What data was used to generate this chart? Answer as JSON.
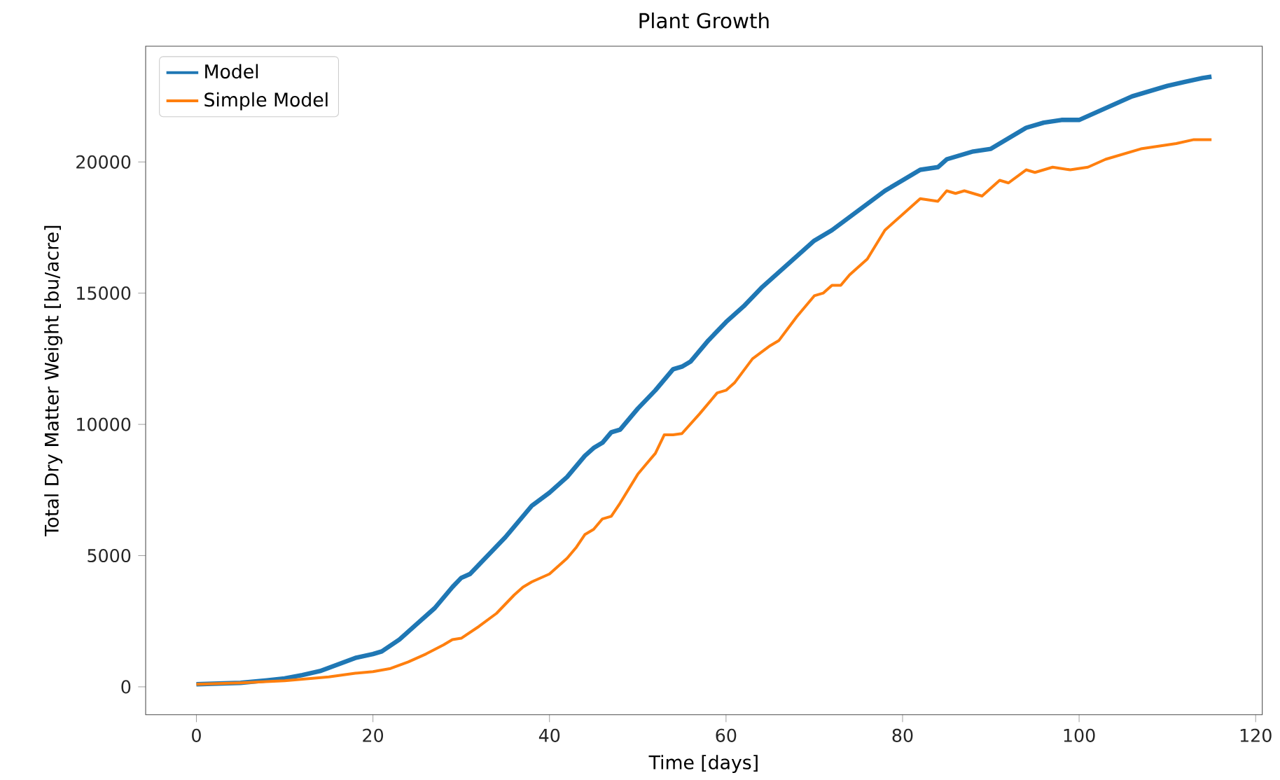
{
  "chart_data": {
    "type": "line",
    "title": "Plant Growth",
    "xlabel": "Time [days]",
    "ylabel": "Total Dry Matter Weight [bu/acre]",
    "xlim": [
      -5.75,
      120.75
    ],
    "ylim": [
      -1060,
      24410
    ],
    "xticks": [
      0,
      20,
      40,
      60,
      80,
      100,
      120
    ],
    "yticks": [
      0,
      5000,
      10000,
      15000,
      20000
    ],
    "grid": false,
    "legend": "top left",
    "line_style": "solid",
    "marker": "none",
    "series": [
      {
        "name": "Model",
        "color": "#1f77b4",
        "x": [
          0,
          5,
          8,
          10,
          12,
          14,
          16,
          18,
          20,
          21,
          23,
          25,
          27,
          29,
          30,
          31,
          33,
          35,
          37,
          38,
          40,
          42,
          44,
          45,
          46,
          47,
          48,
          50,
          52,
          53,
          54,
          55,
          56,
          58,
          60,
          62,
          64,
          66,
          68,
          70,
          72,
          74,
          76,
          78,
          80,
          82,
          84,
          85,
          86,
          88,
          90,
          92,
          94,
          96,
          98,
          100,
          102,
          104,
          106,
          108,
          110,
          112,
          114,
          115
        ],
        "values": [
          100,
          150,
          250,
          320,
          450,
          600,
          850,
          1100,
          1250,
          1350,
          1800,
          2400,
          3000,
          3800,
          4150,
          4300,
          5000,
          5700,
          6500,
          6900,
          7400,
          8000,
          8800,
          9100,
          9300,
          9700,
          9800,
          10600,
          11300,
          11700,
          12100,
          12200,
          12400,
          13200,
          13900,
          14500,
          15200,
          15800,
          16400,
          17000,
          17400,
          17900,
          18400,
          18900,
          19300,
          19700,
          19800,
          20100,
          20200,
          20400,
          20500,
          20900,
          21300,
          21500,
          21600,
          21600,
          21900,
          22200,
          22500,
          22700,
          22900,
          23050,
          23200,
          23250
        ]
      },
      {
        "name": "Simple Model",
        "color": "#ff7f0e",
        "x": [
          0,
          5,
          10,
          15,
          18,
          20,
          22,
          24,
          26,
          28,
          29,
          30,
          32,
          34,
          36,
          37,
          38,
          40,
          42,
          43,
          44,
          45,
          46,
          47,
          48,
          50,
          51,
          52,
          53,
          54,
          55,
          57,
          59,
          60,
          61,
          63,
          65,
          66,
          68,
          70,
          71,
          72,
          73,
          74,
          76,
          78,
          80,
          81,
          82,
          84,
          85,
          86,
          87,
          89,
          91,
          92,
          94,
          95,
          97,
          99,
          101,
          103,
          105,
          107,
          109,
          111,
          113,
          115
        ],
        "values": [
          100,
          150,
          230,
          380,
          520,
          580,
          700,
          950,
          1250,
          1600,
          1800,
          1850,
          2300,
          2800,
          3500,
          3800,
          4000,
          4300,
          4900,
          5300,
          5800,
          6000,
          6400,
          6500,
          7000,
          8100,
          8500,
          8900,
          9600,
          9600,
          9650,
          10400,
          11200,
          11300,
          11600,
          12500,
          13000,
          13200,
          14100,
          14900,
          15000,
          15300,
          15300,
          15700,
          16300,
          17400,
          18000,
          18300,
          18600,
          18500,
          18900,
          18800,
          18900,
          18700,
          19300,
          19200,
          19700,
          19600,
          19800,
          19700,
          19800,
          20100,
          20300,
          20500,
          20600,
          20700,
          20850,
          20850
        ]
      }
    ]
  }
}
